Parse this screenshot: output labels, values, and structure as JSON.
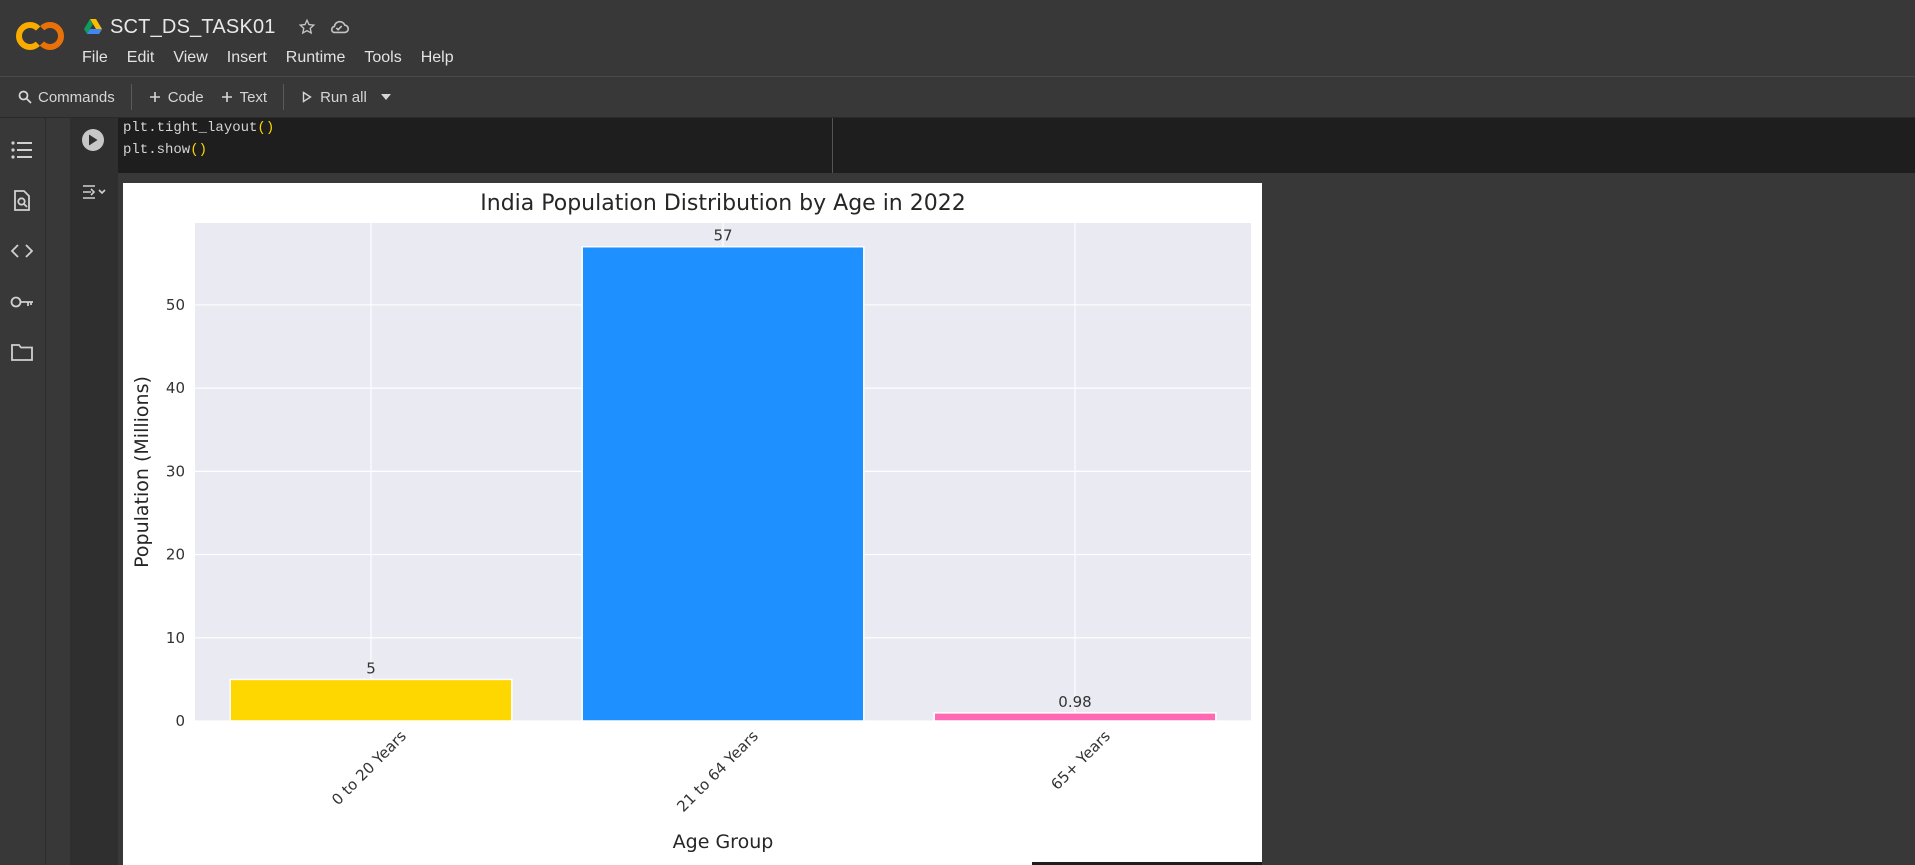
{
  "app": {
    "doc_title": "SCT_DS_TASK01",
    "logo_text": "CO"
  },
  "menu": [
    "File",
    "Edit",
    "View",
    "Insert",
    "Runtime",
    "Tools",
    "Help"
  ],
  "toolbar": {
    "commands_label": "Commands",
    "code_label": "Code",
    "text_label": "Text",
    "run_all_label": "Run all"
  },
  "rail_icons": [
    "table-of-contents-icon",
    "find-replace-icon",
    "code-snippets-icon",
    "secrets-key-icon",
    "files-folder-icon"
  ],
  "cell": {
    "code_lines": [
      {
        "fn": "plt.tight_layout",
        "paren": "()"
      },
      {
        "fn": "plt.show",
        "paren": "()"
      }
    ]
  },
  "chart_data": {
    "type": "bar",
    "title": "India Population Distribution by Age in 2022",
    "xlabel": "Age Group",
    "ylabel": "Population (Millions)",
    "categories": [
      "0 to 20 Years",
      "21 to 64 Years",
      "65+ Years"
    ],
    "values": [
      5,
      57,
      0.98
    ],
    "data_labels": [
      "5",
      "57",
      "0.98"
    ],
    "colors": [
      "#FFD700",
      "#1E90FF",
      "#FF69B4"
    ],
    "ylim": [
      0,
      59.85
    ],
    "yticks": [
      0,
      10,
      20,
      30,
      40,
      50
    ],
    "grid": true,
    "background": "#EAEAF2",
    "xtick_rotation_deg": 45
  },
  "colors": {
    "chrome": "#383838",
    "code_bg": "#1e1e1e",
    "paren": "#ffd700"
  }
}
